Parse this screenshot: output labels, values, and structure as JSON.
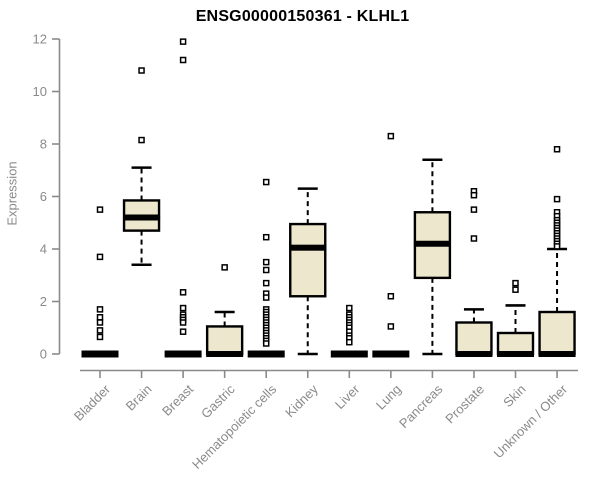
{
  "chart_data": {
    "type": "boxplot",
    "title": "ENSG00000150361 - KLHL1",
    "ylabel": "Expression",
    "xlabel": "",
    "ylim": [
      0,
      12
    ],
    "yticks": [
      0,
      2,
      4,
      6,
      8,
      10,
      12
    ],
    "grid": false,
    "legend": "none",
    "colors": {
      "box_fill": "#ece7cd",
      "box_stroke": "#000000",
      "median": "#000000",
      "axis": "#8a8a8a",
      "title": "#000000"
    },
    "categories": [
      "Bladder",
      "Brain",
      "Breast",
      "Gastric",
      "Hematopoietic cells",
      "Kidney",
      "Liver",
      "Lung",
      "Pancreas",
      "Prostate",
      "Skin",
      "Unknown / Other"
    ],
    "series": [
      {
        "name": "Bladder",
        "q1": 0,
        "median": 0,
        "q3": 0,
        "whisker_low": 0,
        "whisker_high": 0,
        "outliers": [
          5.5,
          3.7,
          1.7,
          1.4,
          1.2,
          0.9,
          0.65
        ]
      },
      {
        "name": "Brain",
        "q1": 4.7,
        "median": 5.2,
        "q3": 5.85,
        "whisker_low": 3.4,
        "whisker_high": 7.1,
        "outliers": [
          10.8,
          8.15
        ]
      },
      {
        "name": "Breast",
        "q1": 0,
        "median": 0,
        "q3": 0,
        "whisker_low": 0,
        "whisker_high": 0,
        "outliers": [
          11.9,
          11.2,
          2.35,
          1.75,
          1.5,
          1.4,
          1.3,
          1.2,
          0.85
        ]
      },
      {
        "name": "Gastric",
        "q1": 0,
        "median": 0,
        "q3": 1.05,
        "whisker_low": 0,
        "whisker_high": 1.6,
        "outliers": [
          3.3
        ]
      },
      {
        "name": "Hematopoietic cells",
        "q1": 0,
        "median": 0,
        "q3": 0,
        "whisker_low": 0,
        "whisker_high": 0,
        "outliers": [
          6.55,
          4.45,
          3.5,
          3.2,
          2.7,
          2.3,
          2.15,
          1.7,
          1.6,
          1.5,
          1.4,
          1.3,
          1.2,
          1.1,
          1.0,
          0.9,
          0.8,
          0.7,
          0.6,
          0.5,
          0.4
        ]
      },
      {
        "name": "Kidney",
        "q1": 2.2,
        "median": 4.05,
        "q3": 4.95,
        "whisker_low": 0,
        "whisker_high": 6.3,
        "outliers": []
      },
      {
        "name": "Liver",
        "q1": 0,
        "median": 0,
        "q3": 0,
        "whisker_low": 0,
        "whisker_high": 0,
        "outliers": [
          1.75,
          1.5,
          1.4,
          1.3,
          1.2,
          1.1,
          1.0,
          0.85,
          0.7,
          0.6,
          0.45
        ]
      },
      {
        "name": "Lung",
        "q1": 0,
        "median": 0,
        "q3": 0,
        "whisker_low": 0,
        "whisker_high": 0,
        "outliers": [
          8.3,
          2.2,
          1.05
        ]
      },
      {
        "name": "Pancreas",
        "q1": 2.9,
        "median": 4.2,
        "q3": 5.4,
        "whisker_low": 0,
        "whisker_high": 7.4,
        "outliers": []
      },
      {
        "name": "Prostate",
        "q1": 0,
        "median": 0,
        "q3": 1.2,
        "whisker_low": 0,
        "whisker_high": 1.7,
        "outliers": [
          6.2,
          6.05,
          5.5,
          4.4
        ]
      },
      {
        "name": "Skin",
        "q1": 0,
        "median": 0,
        "q3": 0.8,
        "whisker_low": 0,
        "whisker_high": 1.85,
        "outliers": [
          2.7,
          2.45
        ]
      },
      {
        "name": "Unknown / Other",
        "q1": 0,
        "median": 0,
        "q3": 1.6,
        "whisker_low": 0,
        "whisker_high": 4.0,
        "outliers": [
          7.8,
          5.9,
          5.4,
          5.25,
          5.1,
          5.0,
          4.9,
          4.8,
          4.7,
          4.6,
          4.5,
          4.4,
          4.3,
          4.2,
          4.1
        ]
      }
    ]
  }
}
